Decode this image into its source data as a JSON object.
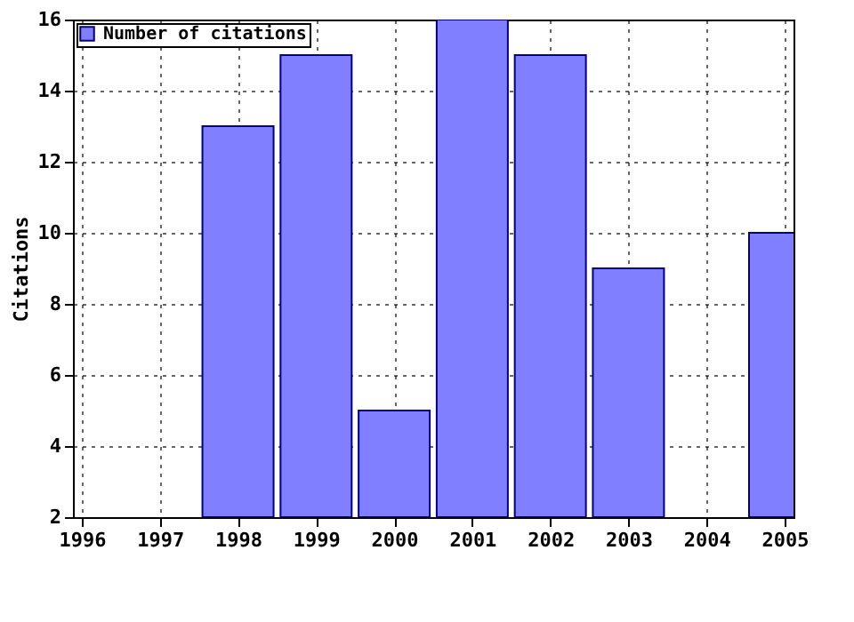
{
  "chart_data": {
    "type": "bar",
    "ylabel": "Citations",
    "x": [
      1998,
      1999,
      2000,
      2001,
      2002,
      2003,
      2005
    ],
    "series": [
      {
        "name": "Number of citations",
        "color": "#7f7fff",
        "values": [
          13,
          15,
          5,
          16,
          15,
          9,
          10
        ]
      }
    ],
    "xlim": [
      1996,
      2005
    ],
    "xticks": [
      1996,
      1997,
      1998,
      1999,
      2000,
      2001,
      2002,
      2003,
      2004,
      2005
    ],
    "ylim": [
      2,
      16
    ],
    "yticks": [
      2,
      4,
      6,
      8,
      10,
      12,
      14,
      16
    ],
    "grid": true,
    "legend": "top left"
  }
}
